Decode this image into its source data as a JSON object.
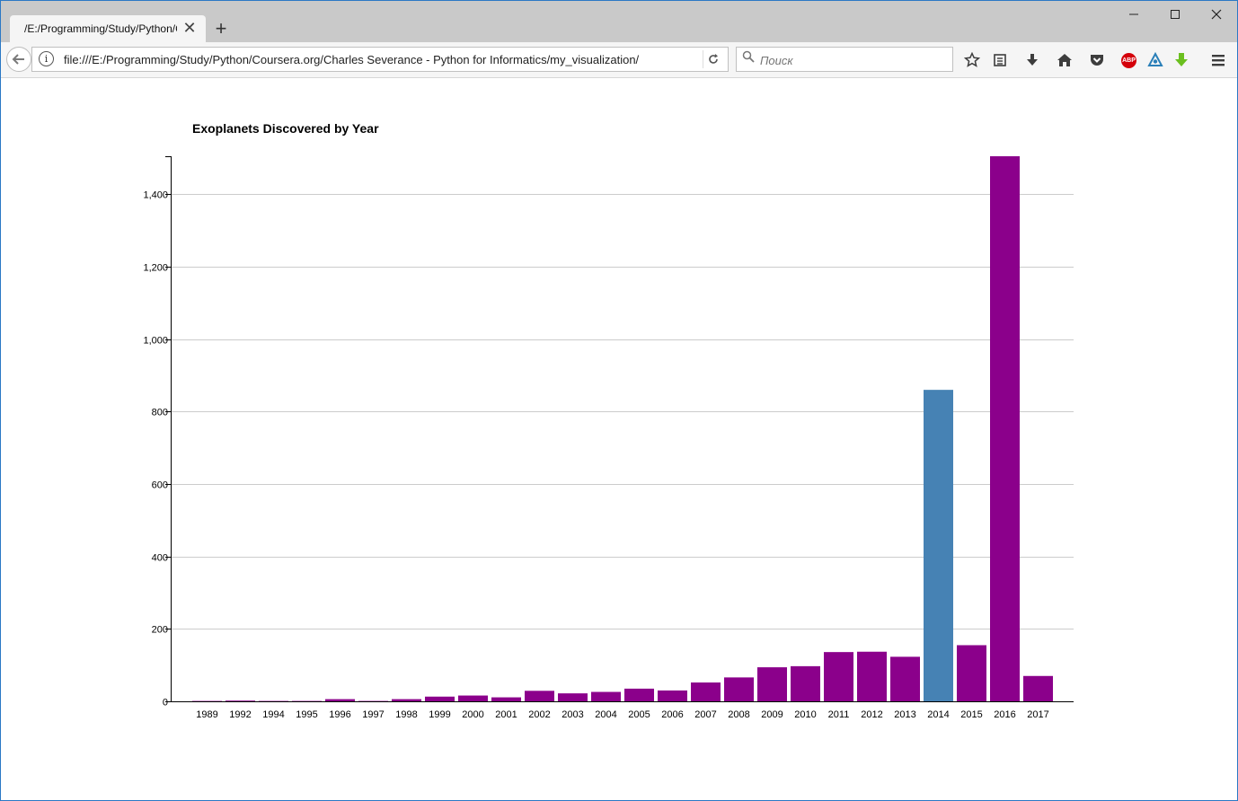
{
  "browser": {
    "tab_title": "/E:/Programming/Study/Python/Coursera.org/Charles Severance - Python for Informatics/my_visualization/",
    "url": "file:///E:/Programming/Study/Python/Coursera.org/Charles Severance - Python for Informatics/my_visualization/",
    "search_placeholder": "Поиск",
    "tab_close_glyph": "✕",
    "new_tab_glyph": "+",
    "icons": [
      "back-icon",
      "info-icon",
      "reload-icon",
      "search-icon",
      "bookmark-star-icon",
      "reader-icon",
      "download-icon",
      "home-icon",
      "pocket-icon",
      "adblock-icon",
      "sync-icon",
      "addon-icon",
      "menu-icon"
    ],
    "abp_label": "ABP"
  },
  "chart_data": {
    "type": "bar",
    "title": "Exoplanets Discovered by Year",
    "xlabel": "",
    "ylabel": "",
    "categories": [
      "1989",
      "1992",
      "1994",
      "1995",
      "1996",
      "1997",
      "1998",
      "1999",
      "2000",
      "2001",
      "2002",
      "2003",
      "2004",
      "2005",
      "2006",
      "2007",
      "2008",
      "2009",
      "2010",
      "2011",
      "2012",
      "2013",
      "2014",
      "2015",
      "2016",
      "2017"
    ],
    "values": [
      1,
      2,
      1,
      1,
      6,
      1,
      6,
      13,
      16,
      11,
      29,
      22,
      26,
      35,
      30,
      52,
      66,
      94,
      97,
      136,
      137,
      123,
      860,
      155,
      1505,
      70
    ],
    "ylim": [
      0,
      1505
    ],
    "yticks": [
      0,
      200,
      400,
      600,
      800,
      1000,
      1200,
      1400
    ],
    "ytick_labels": [
      "0",
      "200",
      "400",
      "600",
      "800",
      "1,000",
      "1,200",
      "1,400"
    ],
    "grid": true,
    "colors": {
      "default": "#8b008b",
      "highlight": "#4682b4"
    },
    "highlight_category": "2014"
  }
}
